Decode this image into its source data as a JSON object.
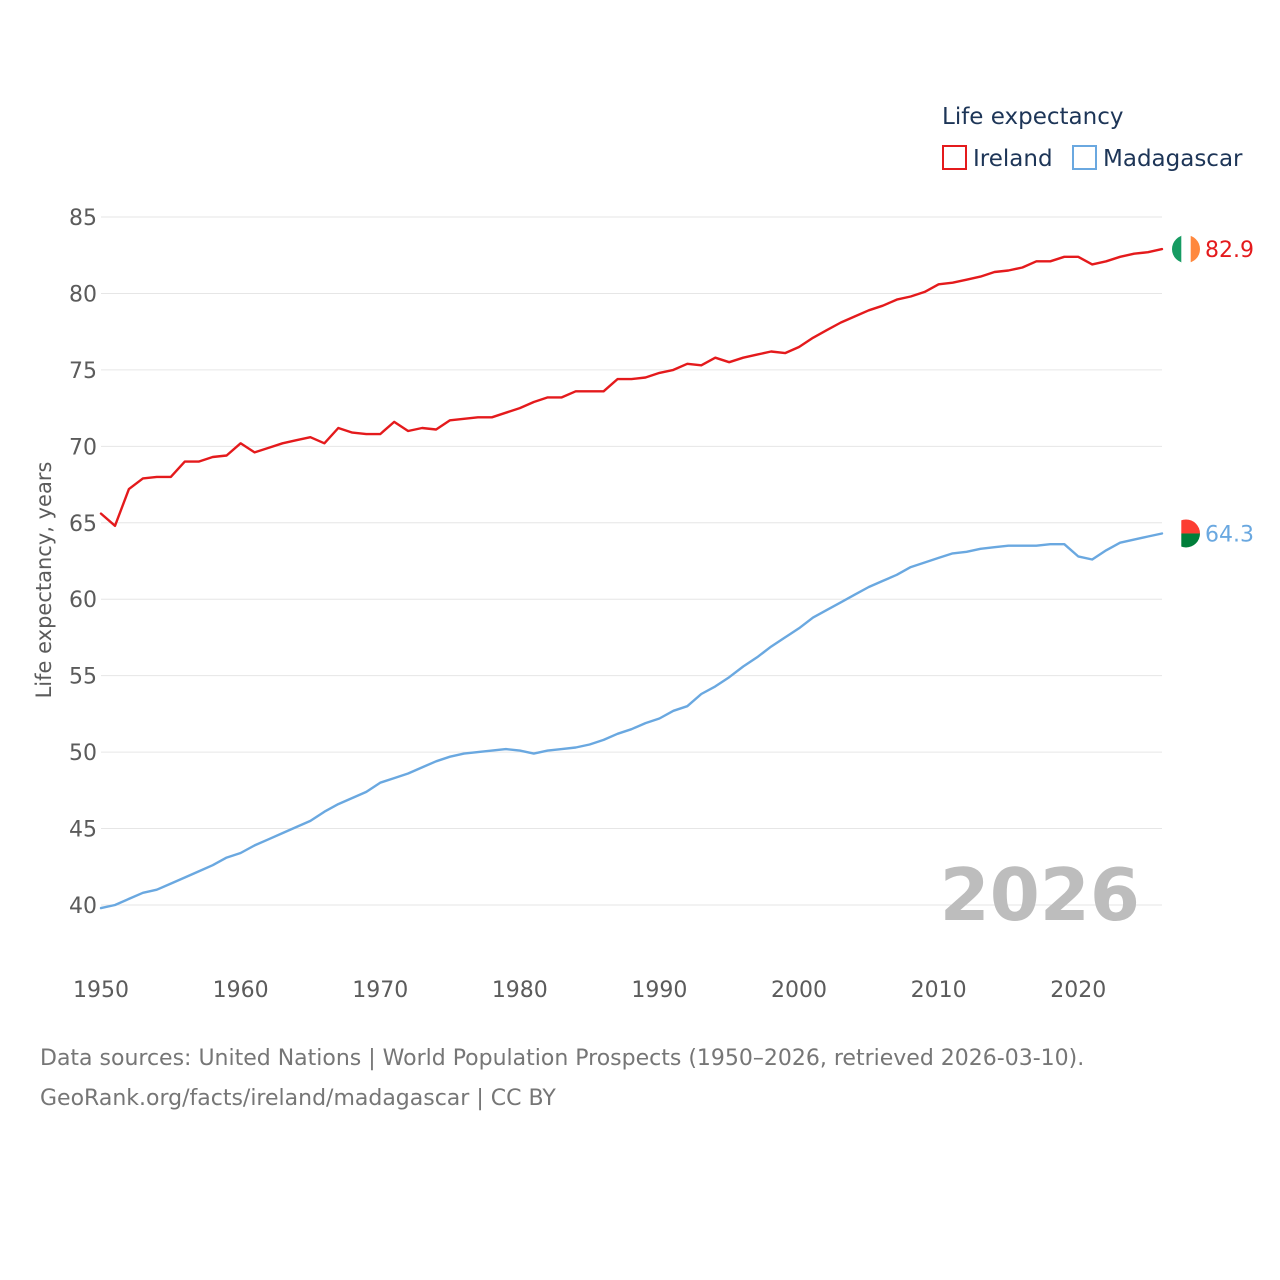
{
  "chart_data": {
    "type": "line",
    "title": "",
    "xlabel": "",
    "ylabel": "Life expectancy, years",
    "xlim": [
      1950,
      2026
    ],
    "ylim": [
      40,
      85
    ],
    "x_ticks": [
      1950,
      1960,
      1970,
      1980,
      1990,
      2000,
      2010,
      2020
    ],
    "y_ticks": [
      40,
      45,
      50,
      55,
      60,
      65,
      70,
      75,
      80,
      85
    ],
    "grid": true,
    "legend": {
      "title": "Life expectancy",
      "placement": "top-right"
    },
    "current_year": "2026",
    "x": [
      1950,
      1951,
      1952,
      1953,
      1954,
      1955,
      1956,
      1957,
      1958,
      1959,
      1960,
      1961,
      1962,
      1963,
      1964,
      1965,
      1966,
      1967,
      1968,
      1969,
      1970,
      1971,
      1972,
      1973,
      1974,
      1975,
      1976,
      1977,
      1978,
      1979,
      1980,
      1981,
      1982,
      1983,
      1984,
      1985,
      1986,
      1987,
      1988,
      1989,
      1990,
      1991,
      1992,
      1993,
      1994,
      1995,
      1996,
      1997,
      1998,
      1999,
      2000,
      2001,
      2002,
      2003,
      2004,
      2005,
      2006,
      2007,
      2008,
      2009,
      2010,
      2011,
      2012,
      2013,
      2014,
      2015,
      2016,
      2017,
      2018,
      2019,
      2020,
      2021,
      2022,
      2023,
      2024,
      2025,
      2026
    ],
    "series": [
      {
        "name": "Ireland",
        "color": "#e41a1c",
        "end_label": "82.9",
        "flag": "ireland-flag",
        "values": [
          65.6,
          64.8,
          67.2,
          67.9,
          68.0,
          68.0,
          69.0,
          69.0,
          69.3,
          69.4,
          70.2,
          69.6,
          69.9,
          70.2,
          70.4,
          70.6,
          70.2,
          71.2,
          70.9,
          70.8,
          70.8,
          71.6,
          71.0,
          71.2,
          71.1,
          71.7,
          71.8,
          71.9,
          71.9,
          72.2,
          72.5,
          72.9,
          73.2,
          73.2,
          73.6,
          73.6,
          73.6,
          74.4,
          74.4,
          74.5,
          74.8,
          75.0,
          75.4,
          75.3,
          75.8,
          75.5,
          75.8,
          76.0,
          76.2,
          76.1,
          76.5,
          77.1,
          77.6,
          78.1,
          78.5,
          78.9,
          79.2,
          79.6,
          79.8,
          80.1,
          80.6,
          80.7,
          80.9,
          81.1,
          81.4,
          81.5,
          81.7,
          82.1,
          82.1,
          82.4,
          82.4,
          81.9,
          82.1,
          82.4,
          82.6,
          82.7,
          82.9
        ]
      },
      {
        "name": "Madagascar",
        "color": "#6aa8e0",
        "end_label": "64.3",
        "flag": "madagascar-flag",
        "values": [
          39.8,
          40.0,
          40.4,
          40.8,
          41.0,
          41.4,
          41.8,
          42.2,
          42.6,
          43.1,
          43.4,
          43.9,
          44.3,
          44.7,
          45.1,
          45.5,
          46.1,
          46.6,
          47.0,
          47.4,
          48.0,
          48.3,
          48.6,
          49.0,
          49.4,
          49.7,
          49.9,
          50.0,
          50.1,
          50.2,
          50.1,
          49.9,
          50.1,
          50.2,
          50.3,
          50.5,
          50.8,
          51.2,
          51.5,
          51.9,
          52.2,
          52.7,
          53.0,
          53.8,
          54.3,
          54.9,
          55.6,
          56.2,
          56.9,
          57.5,
          58.1,
          58.8,
          59.3,
          59.8,
          60.3,
          60.8,
          61.2,
          61.6,
          62.1,
          62.4,
          62.7,
          63.0,
          63.1,
          63.3,
          63.4,
          63.5,
          63.5,
          63.5,
          63.6,
          63.6,
          62.8,
          62.6,
          63.2,
          63.7,
          63.9,
          64.1,
          64.3
        ]
      }
    ]
  },
  "footer": {
    "sources": "Data sources: United Nations | World Population Prospects (1950–2026, retrieved 2026-03-10).",
    "credit": "GeoRank.org/facts/ireland/madagascar | CC BY"
  }
}
